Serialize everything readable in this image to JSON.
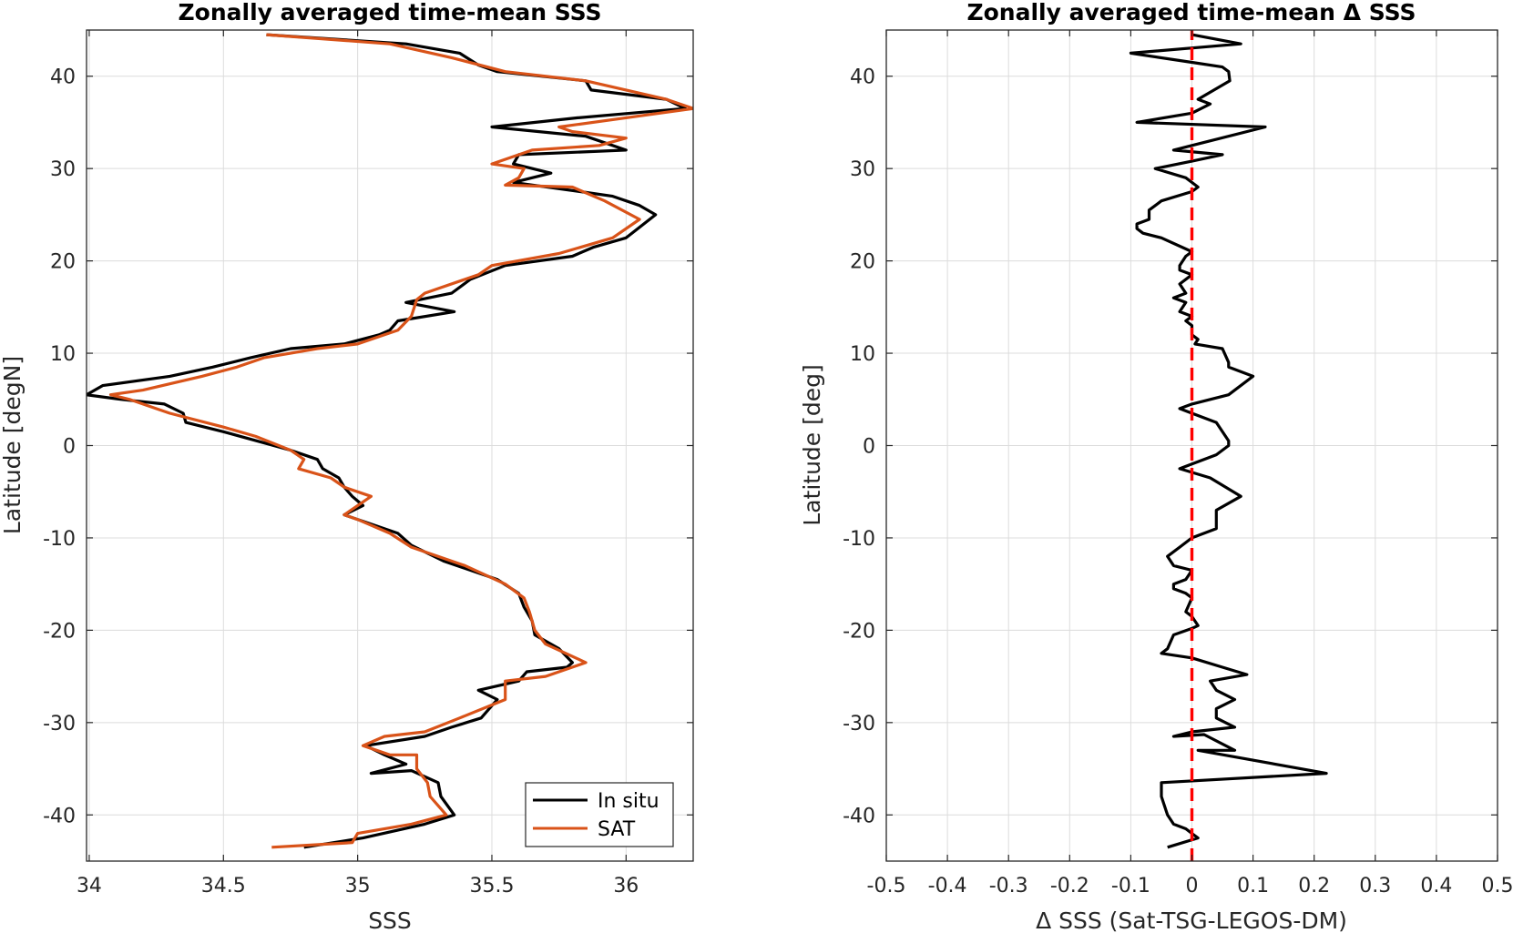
{
  "chart_data": [
    {
      "type": "line",
      "title": "Zonally averaged time-mean SSS",
      "xlabel": "SSS",
      "ylabel": "Latitude [degN]",
      "xlim": [
        33.99,
        36.25
      ],
      "ylim": [
        -45,
        45
      ],
      "xticks": [
        34,
        34.5,
        35,
        35.5,
        36
      ],
      "yticks": [
        40,
        30,
        20,
        10,
        0,
        -10,
        -20,
        -30,
        -40
      ],
      "grid": true,
      "legend": "bottom-right",
      "series": [
        {
          "name": "In situ",
          "color": "#000000",
          "points": [
            [
              34.66,
              44.5
            ],
            [
              35.18,
              43.5
            ],
            [
              35.38,
              42.5
            ],
            [
              35.45,
              41.2
            ],
            [
              35.52,
              40.5
            ],
            [
              35.85,
              39.5
            ],
            [
              35.87,
              38.5
            ],
            [
              36.15,
              37.5
            ],
            [
              36.22,
              36.5
            ],
            [
              35.82,
              35.5
            ],
            [
              35.5,
              34.5
            ],
            [
              35.85,
              33.5
            ],
            [
              36.0,
              32.0
            ],
            [
              35.6,
              31.5
            ],
            [
              35.58,
              30.5
            ],
            [
              35.72,
              29.5
            ],
            [
              35.58,
              28.5
            ],
            [
              35.83,
              27.5
            ],
            [
              35.95,
              27.0
            ],
            [
              36.05,
              26.0
            ],
            [
              36.11,
              25.0
            ],
            [
              36.0,
              22.5
            ],
            [
              35.88,
              21.5
            ],
            [
              35.8,
              20.5
            ],
            [
              35.55,
              19.5
            ],
            [
              35.42,
              18.0
            ],
            [
              35.35,
              16.5
            ],
            [
              35.18,
              15.5
            ],
            [
              35.36,
              14.5
            ],
            [
              35.15,
              13.5
            ],
            [
              35.12,
              12.5
            ],
            [
              35.08,
              12.0
            ],
            [
              34.95,
              11.0
            ],
            [
              34.75,
              10.5
            ],
            [
              34.6,
              9.5
            ],
            [
              34.46,
              8.5
            ],
            [
              34.3,
              7.5
            ],
            [
              34.05,
              6.5
            ],
            [
              33.99,
              5.5
            ],
            [
              34.12,
              5.0
            ],
            [
              34.28,
              4.5
            ],
            [
              34.35,
              3.5
            ],
            [
              34.36,
              2.5
            ],
            [
              34.5,
              1.5
            ],
            [
              34.75,
              -0.5
            ],
            [
              34.85,
              -1.5
            ],
            [
              34.87,
              -2.5
            ],
            [
              34.93,
              -3.5
            ],
            [
              34.95,
              -4.5
            ],
            [
              34.98,
              -5.5
            ],
            [
              35.02,
              -6.5
            ],
            [
              34.95,
              -7.5
            ],
            [
              35.15,
              -9.5
            ],
            [
              35.2,
              -10.8
            ],
            [
              35.32,
              -12.5
            ],
            [
              35.52,
              -14.5
            ],
            [
              35.6,
              -16.0
            ],
            [
              35.62,
              -17.5
            ],
            [
              35.65,
              -19.0
            ],
            [
              35.66,
              -20.5
            ],
            [
              35.75,
              -22.0
            ],
            [
              35.8,
              -23.5
            ],
            [
              35.78,
              -24.0
            ],
            [
              35.63,
              -24.5
            ],
            [
              35.6,
              -25.5
            ],
            [
              35.45,
              -26.5
            ],
            [
              35.52,
              -27.5
            ],
            [
              35.46,
              -29.5
            ],
            [
              35.35,
              -30.5
            ],
            [
              35.25,
              -31.5
            ],
            [
              35.03,
              -32.5
            ],
            [
              35.1,
              -33.5
            ],
            [
              35.18,
              -34.5
            ],
            [
              35.05,
              -35.5
            ],
            [
              35.2,
              -35.2
            ],
            [
              35.3,
              -36.5
            ],
            [
              35.31,
              -38.0
            ],
            [
              35.36,
              -40.0
            ],
            [
              35.25,
              -41.0
            ],
            [
              35.02,
              -42.5
            ],
            [
              34.8,
              -43.5
            ]
          ]
        },
        {
          "name": "SAT",
          "color": "#d95319",
          "points": [
            [
              34.66,
              44.5
            ],
            [
              35.12,
              43.5
            ],
            [
              35.35,
              42.0
            ],
            [
              35.55,
              40.5
            ],
            [
              35.85,
              39.5
            ],
            [
              36.15,
              37.5
            ],
            [
              36.25,
              36.5
            ],
            [
              36.0,
              35.5
            ],
            [
              35.75,
              34.5
            ],
            [
              35.8,
              34.0
            ],
            [
              36.0,
              33.3
            ],
            [
              35.9,
              32.5
            ],
            [
              35.65,
              32.0
            ],
            [
              35.5,
              30.5
            ],
            [
              35.62,
              30.0
            ],
            [
              35.6,
              29.0
            ],
            [
              35.55,
              28.2
            ],
            [
              35.8,
              28.0
            ],
            [
              35.92,
              26.5
            ],
            [
              36.05,
              24.5
            ],
            [
              35.95,
              22.5
            ],
            [
              35.75,
              20.8
            ],
            [
              35.5,
              19.5
            ],
            [
              35.45,
              18.5
            ],
            [
              35.3,
              17.0
            ],
            [
              35.25,
              16.5
            ],
            [
              35.22,
              15.8
            ],
            [
              35.2,
              14.0
            ],
            [
              35.15,
              12.5
            ],
            [
              35.1,
              12.0
            ],
            [
              35.0,
              11.0
            ],
            [
              34.85,
              10.5
            ],
            [
              34.65,
              9.5
            ],
            [
              34.55,
              8.5
            ],
            [
              34.42,
              7.5
            ],
            [
              34.2,
              6.0
            ],
            [
              34.08,
              5.5
            ],
            [
              34.15,
              5.0
            ],
            [
              34.2,
              4.5
            ],
            [
              34.3,
              3.5
            ],
            [
              34.5,
              2.0
            ],
            [
              34.62,
              1.0
            ],
            [
              34.75,
              -0.5
            ],
            [
              34.8,
              -1.5
            ],
            [
              34.78,
              -2.5
            ],
            [
              34.9,
              -3.5
            ],
            [
              34.95,
              -4.5
            ],
            [
              35.05,
              -5.5
            ],
            [
              34.95,
              -7.5
            ],
            [
              35.0,
              -8.0
            ],
            [
              35.12,
              -9.5
            ],
            [
              35.2,
              -11.0
            ],
            [
              35.4,
              -13.0
            ],
            [
              35.55,
              -15.0
            ],
            [
              35.62,
              -16.5
            ],
            [
              35.64,
              -18.0
            ],
            [
              35.66,
              -20.0
            ],
            [
              35.7,
              -21.5
            ],
            [
              35.85,
              -23.5
            ],
            [
              35.7,
              -25.0
            ],
            [
              35.55,
              -25.5
            ],
            [
              35.55,
              -27.5
            ],
            [
              35.38,
              -29.5
            ],
            [
              35.25,
              -31.0
            ],
            [
              35.1,
              -31.5
            ],
            [
              35.02,
              -32.5
            ],
            [
              35.12,
              -33.5
            ],
            [
              35.22,
              -33.5
            ],
            [
              35.22,
              -35.0
            ],
            [
              35.26,
              -36.5
            ],
            [
              35.27,
              -38.0
            ],
            [
              35.33,
              -40.0
            ],
            [
              35.2,
              -41.0
            ],
            [
              35.0,
              -42.0
            ],
            [
              34.98,
              -43.0
            ],
            [
              34.68,
              -43.5
            ]
          ]
        }
      ]
    },
    {
      "type": "line",
      "title": "Zonally averaged time-mean Δ SSS",
      "xlabel": "Δ SSS (Sat-TSG-LEGOS-DM)",
      "ylabel": "Latitude [deg]",
      "xlim": [
        -0.5,
        0.5
      ],
      "ylim": [
        -45,
        45
      ],
      "xticks": [
        -0.5,
        -0.4,
        -0.3,
        -0.2,
        -0.1,
        0,
        0.1,
        0.2,
        0.3,
        0.4,
        0.5
      ],
      "yticks": [
        40,
        30,
        20,
        10,
        0,
        -10,
        -20,
        -30,
        -40
      ],
      "grid": true,
      "series": [
        {
          "color": "#000000",
          "points": [
            [
              0.0,
              44.5
            ],
            [
              0.08,
              43.5
            ],
            [
              -0.1,
              42.5
            ],
            [
              0.0,
              41.5
            ],
            [
              0.05,
              41.0
            ],
            [
              0.06,
              40.5
            ],
            [
              0.062,
              39.5
            ],
            [
              0.01,
              37.5
            ],
            [
              0.03,
              37.0
            ],
            [
              0.0,
              36.0
            ],
            [
              -0.09,
              35.0
            ],
            [
              0.12,
              34.5
            ],
            [
              0.0,
              32.5
            ],
            [
              -0.03,
              32.0
            ],
            [
              0.05,
              31.5
            ],
            [
              0.0,
              30.8
            ],
            [
              -0.06,
              30.0
            ],
            [
              -0.01,
              29.0
            ],
            [
              0.0,
              28.5
            ],
            [
              0.01,
              28.0
            ],
            [
              0.0,
              27.5
            ],
            [
              -0.05,
              26.5
            ],
            [
              -0.07,
              25.5
            ],
            [
              -0.07,
              24.5
            ],
            [
              -0.09,
              24.0
            ],
            [
              -0.09,
              23.5
            ],
            [
              -0.08,
              23.0
            ],
            [
              -0.05,
              22.5
            ],
            [
              0.0,
              21.0
            ],
            [
              -0.01,
              20.5
            ],
            [
              -0.02,
              19.5
            ],
            [
              -0.02,
              19.0
            ],
            [
              0.0,
              18.5
            ],
            [
              -0.02,
              17.5
            ],
            [
              -0.01,
              16.5
            ],
            [
              -0.03,
              16.0
            ],
            [
              -0.01,
              15.5
            ],
            [
              -0.02,
              14.5
            ],
            [
              0.0,
              14.0
            ],
            [
              -0.01,
              13.5
            ],
            [
              0.0,
              13.0
            ],
            [
              0.0,
              12.0
            ],
            [
              0.01,
              11.5
            ],
            [
              0.005,
              11.0
            ],
            [
              0.05,
              10.5
            ],
            [
              0.06,
              9.0
            ],
            [
              0.06,
              8.5
            ],
            [
              0.1,
              7.5
            ],
            [
              0.06,
              5.5
            ],
            [
              0.0,
              4.5
            ],
            [
              -0.02,
              4.0
            ],
            [
              0.0,
              3.5
            ],
            [
              0.04,
              2.5
            ],
            [
              0.06,
              0.5
            ],
            [
              0.06,
              0.0
            ],
            [
              0.04,
              -1.0
            ],
            [
              0.0,
              -2.0
            ],
            [
              -0.02,
              -2.5
            ],
            [
              0.03,
              -3.5
            ],
            [
              0.08,
              -5.5
            ],
            [
              0.04,
              -7.0
            ],
            [
              0.04,
              -8.0
            ],
            [
              0.04,
              -9.0
            ],
            [
              0.0,
              -10.0
            ],
            [
              -0.02,
              -11.0
            ],
            [
              -0.04,
              -12.0
            ],
            [
              -0.03,
              -13.0
            ],
            [
              0.0,
              -13.5
            ],
            [
              -0.01,
              -14.5
            ],
            [
              -0.03,
              -15.0
            ],
            [
              -0.03,
              -15.5
            ],
            [
              -0.01,
              -16.0
            ],
            [
              0.0,
              -16.5
            ],
            [
              -0.01,
              -18.0
            ],
            [
              0.0,
              -18.5
            ],
            [
              0.01,
              -19.5
            ],
            [
              0.0,
              -19.8
            ],
            [
              -0.03,
              -20.5
            ],
            [
              -0.04,
              -22.0
            ],
            [
              -0.05,
              -22.5
            ],
            [
              0.0,
              -23.0
            ],
            [
              0.05,
              -24.0
            ],
            [
              0.09,
              -24.8
            ],
            [
              0.03,
              -25.5
            ],
            [
              0.04,
              -26.5
            ],
            [
              0.07,
              -27.5
            ],
            [
              0.04,
              -28.5
            ],
            [
              0.04,
              -29.5
            ],
            [
              0.07,
              -30.5
            ],
            [
              0.0,
              -31.0
            ],
            [
              -0.03,
              -31.5
            ],
            [
              0.02,
              -31.3
            ],
            [
              0.07,
              -33.0
            ],
            [
              0.01,
              -33.0
            ],
            [
              0.22,
              -35.5
            ],
            [
              -0.05,
              -36.5
            ],
            [
              -0.05,
              -38.0
            ],
            [
              -0.04,
              -40.0
            ],
            [
              -0.03,
              -41.0
            ],
            [
              -0.01,
              -41.5
            ],
            [
              0.0,
              -42.0
            ],
            [
              0.01,
              -42.5
            ],
            [
              -0.04,
              -43.5
            ]
          ]
        },
        {
          "color": "#ff0000",
          "dashed": true,
          "points": [
            [
              0,
              -45
            ],
            [
              0,
              45
            ]
          ]
        }
      ]
    }
  ]
}
